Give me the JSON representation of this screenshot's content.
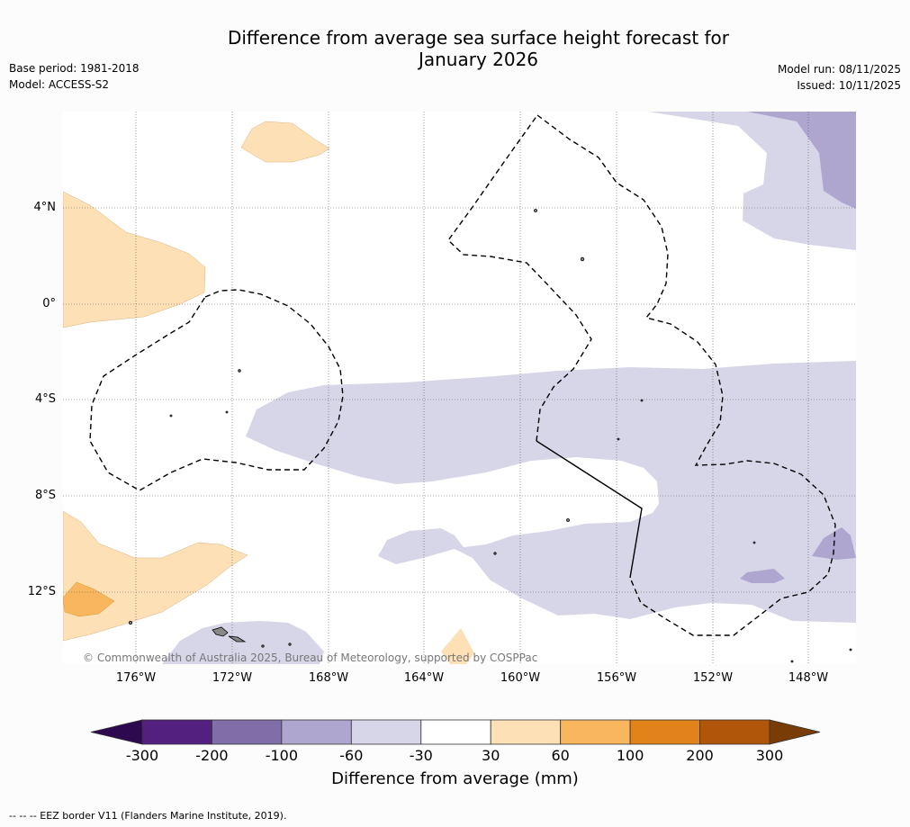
{
  "title_line1": "Difference from average sea surface height forecast for",
  "title_line2": "January 2026",
  "base_period": "Base period: 1981-2018",
  "model": "Model: ACCESS-S2",
  "model_run": "Model run: 08/11/2025",
  "issued": "Issued: 10/11/2025",
  "lat_labels": [
    "4°N",
    "0°",
    "4°S",
    "8°S",
    "12°S"
  ],
  "lon_labels": [
    "176°W",
    "172°W",
    "168°W",
    "164°W",
    "160°W",
    "156°W",
    "152°W",
    "148°W"
  ],
  "copyright": "© Commonwealth of Australia 2025, Bureau of Meteorology, supported by COSPPac",
  "colorbar": {
    "title": "Difference from average (mm)",
    "ticks": [
      "-300",
      "-200",
      "-100",
      "-60",
      "-30",
      "30",
      "60",
      "100",
      "200",
      "300"
    ],
    "colors": [
      "#54207f",
      "#7f6ea8",
      "#afa6cf",
      "#d7d6e8",
      "#ffffff",
      "#fde0b6",
      "#f8b65f",
      "#e1821a",
      "#b0560a"
    ],
    "low_extend": "#2d0a50",
    "high_extend": "#7a3c06"
  },
  "footnote": "--  --  -- EEZ border V11 (Flanders Marine Institute, 2019)."
}
